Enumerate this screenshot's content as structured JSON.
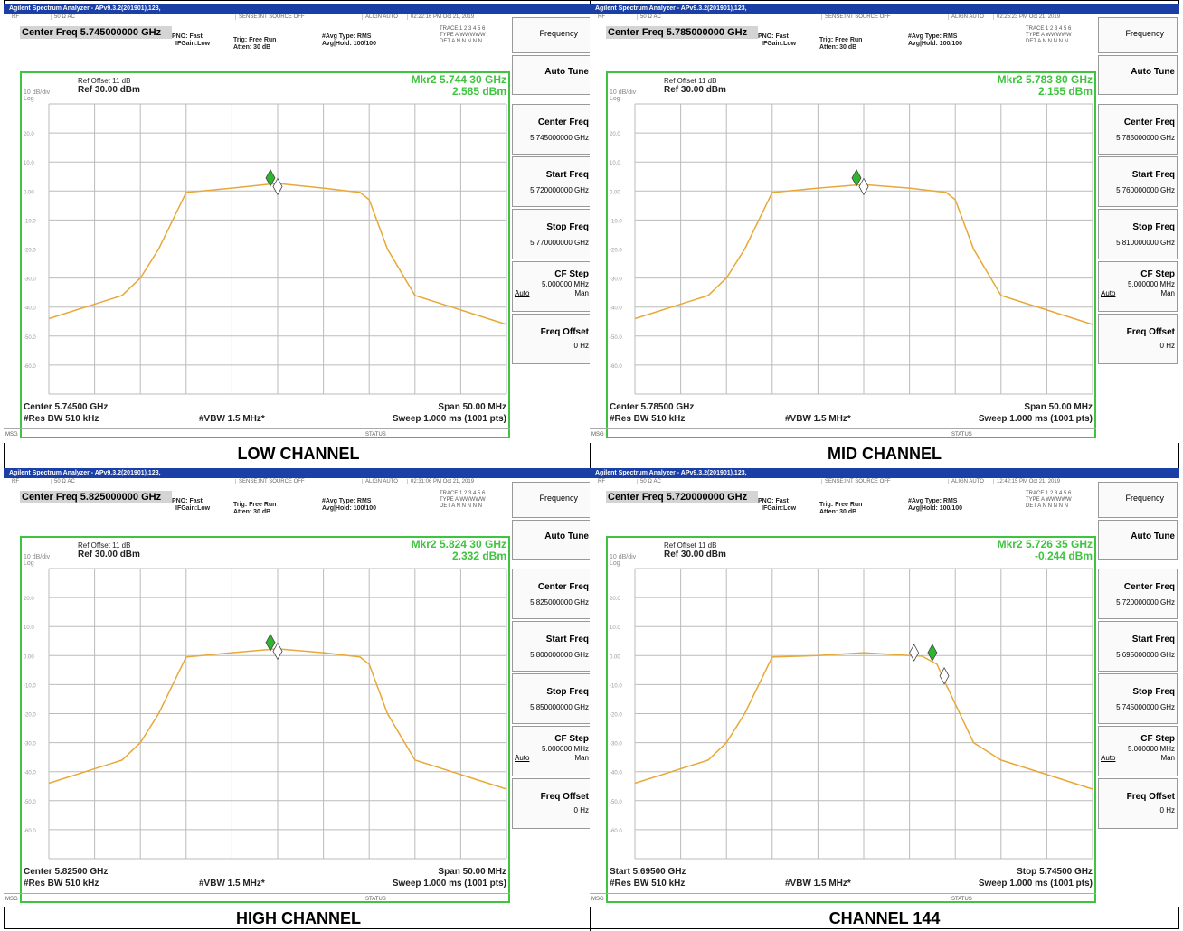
{
  "titlebar": "Agilent Spectrum Analyzer - APv9.3.2(201901),123,",
  "status": {
    "rf": "RF",
    "ohm": "50 Ω  AC",
    "sense": "SENSE:INT  SOURCE OFF",
    "align": "ALIGN AUTO"
  },
  "header": {
    "pno": "PNO: Fast",
    "ifgain": "IFGain:Low",
    "trig": "Trig: Free Run",
    "atten": "Atten: 30 dB",
    "avgtype": "#Avg Type: RMS",
    "avghold": "Avg|Hold: 100/100",
    "trace": "TRACE 1 2 3 4 5 6",
    "type": "TYPE A WWWWW",
    "det": "DET A N N N N N"
  },
  "ref": {
    "offset": "Ref Offset 11 dB",
    "ref": "Ref 30.00 dBm",
    "scale": "10 dB/div",
    "log": "Log"
  },
  "ticks": [
    "20.0",
    "10.0",
    "0.00",
    "-10.0",
    "-20.0",
    "-30.0",
    "-40.0",
    "-50.0",
    "-60.0"
  ],
  "bottom": {
    "rbw": "#Res BW 510 kHz",
    "vbw": "#VBW 1.5 MHz*",
    "sweep": "Sweep  1.000 ms (1001 pts)"
  },
  "msg": "MSG",
  "statuslbl": "STATUS",
  "softkeys": {
    "title": "Frequency",
    "auto_tune": "Auto Tune",
    "center": "Center Freq",
    "start": "Start Freq",
    "stop": "Stop Freq",
    "cfstep": "CF Step",
    "cfstep_val": "5.000000 MHz",
    "auto": "Auto",
    "man": "Man",
    "offset": "Freq Offset",
    "offset_val": "0 Hz"
  },
  "panels": [
    {
      "caption": "LOW CHANNEL",
      "time": "02:22:16 PM Oct 21, 2019",
      "center_freq": "Center Freq 5.745000000 GHz",
      "mkr": "Mkr2 5.744 30 GHz",
      "mkr_val": "2.585 dBm",
      "left_info": "Center 5.74500 GHz",
      "right_info": "Span 50.00 MHz",
      "center_key": "5.745000000 GHz",
      "start_key": "5.720000000 GHz",
      "stop_key": "5.770000000 GHz"
    },
    {
      "caption": "MID CHANNEL",
      "time": "02:25:23 PM Oct 21, 2019",
      "center_freq": "Center Freq 5.785000000 GHz",
      "mkr": "Mkr2 5.783 80 GHz",
      "mkr_val": "2.155 dBm",
      "left_info": "Center 5.78500 GHz",
      "right_info": "Span 50.00 MHz",
      "center_key": "5.785000000 GHz",
      "start_key": "5.760000000 GHz",
      "stop_key": "5.810000000 GHz"
    },
    {
      "caption": "HIGH CHANNEL",
      "time": "02:31:06 PM Oct 21, 2019",
      "center_freq": "Center Freq 5.825000000 GHz",
      "mkr": "Mkr2 5.824 30 GHz",
      "mkr_val": "2.332 dBm",
      "left_info": "Center 5.82500 GHz",
      "right_info": "Span 50.00 MHz",
      "center_key": "5.825000000 GHz",
      "start_key": "5.800000000 GHz",
      "stop_key": "5.850000000 GHz"
    },
    {
      "caption": "CHANNEL 144",
      "time": "12:42:15 PM Oct 21, 2019",
      "center_freq": "Center Freq 5.720000000 GHz",
      "mkr": "Mkr2 5.726 35 GHz",
      "mkr_val": "-0.244 dBm",
      "left_info": "Start 5.69500 GHz",
      "right_info": "Stop 5.74500 GHz",
      "center_key": "5.720000000 GHz",
      "start_key": "5.695000000 GHz",
      "stop_key": "5.745000000 GHz"
    }
  ],
  "chart_data": [
    {
      "type": "line",
      "title": "LOW CHANNEL",
      "xlabel": "",
      "ylabel": "",
      "ylim": [
        -70,
        30
      ],
      "x": [
        -25,
        -19,
        -17,
        -16,
        -15,
        -13,
        -10,
        -5,
        -1,
        0,
        5,
        9,
        10,
        12,
        15,
        20,
        25
      ],
      "series": [
        {
          "values": [
            -44,
            -38,
            -36,
            -33,
            -30,
            -20,
            -0.5,
            1,
            2.3,
            2.6,
            1,
            -0.5,
            -3,
            -20,
            -36,
            -41,
            -46
          ]
        }
      ]
    },
    {
      "type": "line",
      "title": "MID CHANNEL",
      "xlabel": "",
      "ylabel": "",
      "ylim": [
        -70,
        30
      ],
      "x": [
        -25,
        -19,
        -17,
        -16,
        -15,
        -13,
        -10,
        -5,
        -1,
        0,
        5,
        9,
        10,
        12,
        15,
        20,
        25
      ],
      "series": [
        {
          "values": [
            -44,
            -38,
            -36,
            -33,
            -30,
            -20,
            -0.5,
            1,
            2,
            2.2,
            1,
            -0.5,
            -3,
            -20,
            -36,
            -41,
            -46
          ]
        }
      ]
    },
    {
      "type": "line",
      "title": "HIGH CHANNEL",
      "xlabel": "",
      "ylabel": "",
      "ylim": [
        -70,
        30
      ],
      "x": [
        -25,
        -19,
        -17,
        -16,
        -15,
        -13,
        -10,
        -5,
        -1,
        0,
        5,
        9,
        10,
        12,
        15,
        20,
        25
      ],
      "series": [
        {
          "values": [
            -44,
            -38,
            -36,
            -33,
            -30,
            -20,
            -0.5,
            1,
            2.1,
            2.3,
            1,
            -0.5,
            -3,
            -20,
            -36,
            -41,
            -46
          ]
        }
      ]
    },
    {
      "type": "line",
      "title": "CHANNEL 144",
      "xlabel": "",
      "ylabel": "",
      "ylim": [
        -70,
        30
      ],
      "x": [
        -25,
        -19,
        -17,
        -16,
        -15,
        -13,
        -10,
        -5,
        0,
        5,
        6.35,
        8,
        9,
        12,
        15,
        20,
        25
      ],
      "series": [
        {
          "values": [
            -44,
            -38,
            -36,
            -33,
            -30,
            -20,
            -0.5,
            0,
            1,
            0,
            -0.2,
            -3,
            -10,
            -30,
            -36,
            -41,
            -46
          ]
        }
      ]
    }
  ]
}
